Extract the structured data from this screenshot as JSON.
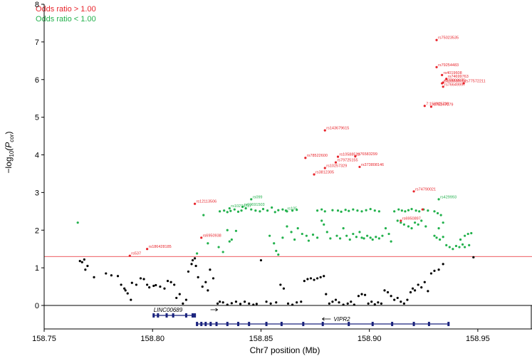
{
  "chart_data": {
    "type": "scatter",
    "xlabel": "Chr7 position (Mb)",
    "ylabel_main": "−log",
    "ylabel_sub": "10",
    "ylabel_paren": "(P",
    "ylabel_subsub": "cor",
    "ylabel_close": ")",
    "xlim": [
      158.75,
      158.975
    ],
    "ylim": [
      -0.6,
      8
    ],
    "x_ticks": [
      158.75,
      158.8,
      158.85,
      158.9,
      158.95
    ],
    "x_tick_labels": [
      "158.75",
      "158.80",
      "158.85",
      "158.90",
      "158.95"
    ],
    "y_ticks": [
      0,
      1,
      2,
      3,
      4,
      5,
      6,
      7,
      8
    ],
    "y_tick_labels": [
      "0",
      "1",
      "2",
      "3",
      "4",
      "5",
      "6",
      "7",
      "8"
    ],
    "threshold": 1.3,
    "colors": {
      "or_gt1": "#e8242b",
      "or_lt1": "#22b14c",
      "ns": "#000000",
      "threshold": "#e8242b",
      "gene": "#1a237e"
    },
    "legend": [
      {
        "label": "Odds ratio > 1.00",
        "color": "#e8242b"
      },
      {
        "label": "Odds ratio < 1.00",
        "color": "#22b14c"
      }
    ],
    "genes": [
      {
        "name": "LINC00689",
        "start": 158.8,
        "end": 158.82,
        "direction": "right",
        "exons": [
          158.8005,
          158.8025,
          158.8065,
          158.8095,
          158.8155,
          158.8185,
          158.8195
        ]
      },
      {
        "name": "VIPR2",
        "start": 158.82,
        "end": 158.937,
        "direction": "left",
        "exons": [
          158.8205,
          158.8225,
          158.8245,
          158.8268,
          158.8295,
          158.8345,
          158.8395,
          158.8445,
          158.8525,
          158.8595,
          158.8695,
          158.8785,
          158.8905,
          158.9015,
          158.9105,
          158.9205,
          158.9275,
          158.9365
        ]
      }
    ],
    "labeled_red": [
      {
        "name": "rs75023535",
        "x": 158.931,
        "y": 7.05
      },
      {
        "name": "rs79254483",
        "x": 158.931,
        "y": 6.33
      },
      {
        "name": "rs4019608",
        "x": 158.9335,
        "y": 6.12
      },
      {
        "name": "rs74699763",
        "x": 158.9355,
        "y": 6.02
      },
      {
        "name": "rs188030062",
        "x": 158.9335,
        "y": 5.9
      },
      {
        "name": "rs77003675",
        "x": 158.934,
        "y": 5.92
      },
      {
        "name": "rs77572211",
        "x": 158.9435,
        "y": 5.9
      },
      {
        "name": "rs76649997",
        "x": 158.934,
        "y": 5.81
      },
      {
        "name": "7:158925739",
        "x": 158.9255,
        "y": 5.3
      },
      {
        "name": "rs75247079",
        "x": 158.9285,
        "y": 5.28
      },
      {
        "name": "rs143679615",
        "x": 158.8795,
        "y": 4.65
      },
      {
        "name": "rs78522600",
        "x": 158.8705,
        "y": 3.92
      },
      {
        "name": "rs10588523",
        "x": 158.8855,
        "y": 3.95
      },
      {
        "name": "rs76583299",
        "x": 158.8935,
        "y": 3.96
      },
      {
        "name": "rs79725155",
        "x": 158.8845,
        "y": 3.8
      },
      {
        "name": "rs10257329",
        "x": 158.8795,
        "y": 3.65
      },
      {
        "name": "rs373808146",
        "x": 158.8955,
        "y": 3.68
      },
      {
        "name": "rs3812305",
        "x": 158.8745,
        "y": 3.48
      },
      {
        "name": "rs74790021",
        "x": 158.9205,
        "y": 3.03
      },
      {
        "name": "rs6950897",
        "x": 158.9145,
        "y": 2.25
      },
      {
        "name": "rs12113506",
        "x": 158.8195,
        "y": 2.7
      },
      {
        "name": "rs6950938",
        "x": 158.8225,
        "y": 1.8
      },
      {
        "name": "rs186428185",
        "x": 158.7975,
        "y": 1.5
      },
      {
        "name": "rs537",
        "x": 158.7895,
        "y": 1.32
      }
    ],
    "labeled_green": [
      {
        "name": "rs429993",
        "x": 158.932,
        "y": 2.82
      },
      {
        "name": "rs099",
        "x": 158.8455,
        "y": 2.82
      },
      {
        "name": "rs10274787",
        "x": 158.8355,
        "y": 2.58
      },
      {
        "name": "rs60691503",
        "x": 158.8415,
        "y": 2.62
      },
      {
        "name": "rs105",
        "x": 158.8615,
        "y": 2.52
      }
    ],
    "red_points_extra": [
      [
        158.9245,
        2.55
      ]
    ],
    "green_points": [
      [
        158.7655,
        2.2
      ],
      [
        158.8235,
        2.4
      ],
      [
        158.8205,
        1.38
      ],
      [
        158.8255,
        1.65
      ],
      [
        158.8305,
        1.55
      ],
      [
        158.8325,
        1.42
      ],
      [
        158.8355,
        1.7
      ],
      [
        158.8385,
        1.98
      ],
      [
        158.8365,
        1.75
      ],
      [
        158.8345,
        2.0
      ],
      [
        158.831,
        2.5
      ],
      [
        158.833,
        2.52
      ],
      [
        158.8345,
        2.48
      ],
      [
        158.836,
        2.51
      ],
      [
        158.8378,
        2.55
      ],
      [
        158.8395,
        2.49
      ],
      [
        158.841,
        2.52
      ],
      [
        158.843,
        2.58
      ],
      [
        158.8455,
        2.55
      ],
      [
        158.8475,
        2.52
      ],
      [
        158.8495,
        2.5
      ],
      [
        158.851,
        2.56
      ],
      [
        158.853,
        2.52
      ],
      [
        158.855,
        2.6
      ],
      [
        158.8565,
        2.48
      ],
      [
        158.858,
        2.53
      ],
      [
        158.86,
        2.55
      ],
      [
        158.862,
        2.5
      ],
      [
        158.8645,
        2.52
      ],
      [
        158.8665,
        2.54
      ],
      [
        158.854,
        1.85
      ],
      [
        158.856,
        1.65
      ],
      [
        158.857,
        1.45
      ],
      [
        158.858,
        1.35
      ],
      [
        158.86,
        1.8
      ],
      [
        158.862,
        2.1
      ],
      [
        158.864,
        1.95
      ],
      [
        158.8655,
        1.75
      ],
      [
        158.867,
        2.05
      ],
      [
        158.869,
        1.9
      ],
      [
        158.871,
        1.85
      ],
      [
        158.872,
        1.72
      ],
      [
        158.874,
        1.88
      ],
      [
        158.876,
        1.8
      ],
      [
        158.878,
        2.25
      ],
      [
        158.879,
        2.15
      ],
      [
        158.8805,
        1.95
      ],
      [
        158.882,
        1.78
      ],
      [
        158.876,
        2.52
      ],
      [
        158.878,
        2.55
      ],
      [
        158.8795,
        2.5
      ],
      [
        158.883,
        2.53
      ],
      [
        158.8855,
        2.52
      ],
      [
        158.887,
        2.49
      ],
      [
        158.889,
        2.54
      ],
      [
        158.8905,
        2.51
      ],
      [
        158.8925,
        2.55
      ],
      [
        158.8945,
        2.52
      ],
      [
        158.8965,
        2.5
      ],
      [
        158.8985,
        2.53
      ],
      [
        158.9005,
        2.56
      ],
      [
        158.9025,
        2.52
      ],
      [
        158.9045,
        2.5
      ],
      [
        158.885,
        1.85
      ],
      [
        158.8865,
        1.78
      ],
      [
        158.888,
        2.05
      ],
      [
        158.8895,
        1.85
      ],
      [
        158.891,
        1.75
      ],
      [
        158.8925,
        1.9
      ],
      [
        158.894,
        1.82
      ],
      [
        158.8955,
        1.95
      ],
      [
        158.8965,
        1.8
      ],
      [
        158.8975,
        1.78
      ],
      [
        158.899,
        1.85
      ],
      [
        158.9005,
        1.8
      ],
      [
        158.9015,
        1.75
      ],
      [
        158.903,
        1.82
      ],
      [
        158.9045,
        1.78
      ],
      [
        158.906,
        1.85
      ],
      [
        158.9075,
        2.05
      ],
      [
        158.909,
        1.9
      ],
      [
        158.91,
        1.7
      ],
      [
        158.9115,
        2.5
      ],
      [
        158.9135,
        2.55
      ],
      [
        158.915,
        2.52
      ],
      [
        158.9165,
        2.5
      ],
      [
        158.918,
        2.53
      ],
      [
        158.9195,
        2.56
      ],
      [
        158.9215,
        2.52
      ],
      [
        158.923,
        2.5
      ],
      [
        158.925,
        2.55
      ],
      [
        158.927,
        2.52
      ],
      [
        158.913,
        2.25
      ],
      [
        158.9145,
        2.2
      ],
      [
        158.916,
        2.15
      ],
      [
        158.918,
        2.1
      ],
      [
        158.9195,
        2.05
      ],
      [
        158.921,
        2.2
      ],
      [
        158.9225,
        2.15
      ],
      [
        158.924,
        2.25
      ],
      [
        158.926,
        2.1
      ],
      [
        158.93,
        2.5
      ],
      [
        158.9315,
        2.45
      ],
      [
        158.933,
        2.4
      ],
      [
        158.934,
        2.2
      ],
      [
        158.932,
        2.05
      ],
      [
        158.93,
        1.85
      ],
      [
        158.931,
        1.8
      ],
      [
        158.9325,
        1.75
      ],
      [
        158.934,
        1.82
      ],
      [
        158.9355,
        1.6
      ],
      [
        158.937,
        1.55
      ],
      [
        158.9385,
        1.5
      ],
      [
        158.94,
        1.58
      ],
      [
        158.9415,
        1.55
      ],
      [
        158.943,
        1.62
      ],
      [
        158.942,
        1.75
      ],
      [
        158.944,
        1.85
      ],
      [
        158.9455,
        1.9
      ],
      [
        158.947,
        1.92
      ],
      [
        158.946,
        1.6
      ],
      [
        158.944,
        1.55
      ]
    ],
    "black_points": [
      [
        158.7665,
        1.18
      ],
      [
        158.7685,
        1.22
      ],
      [
        158.7675,
        1.15
      ],
      [
        158.77,
        1.05
      ],
      [
        158.769,
        0.95
      ],
      [
        158.773,
        0.75
      ],
      [
        158.7785,
        0.85
      ],
      [
        158.781,
        0.8
      ],
      [
        158.784,
        0.78
      ],
      [
        158.7855,
        0.55
      ],
      [
        158.787,
        0.45
      ],
      [
        158.7875,
        0.4
      ],
      [
        158.7885,
        0.32
      ],
      [
        158.79,
        0.15
      ],
      [
        158.7905,
        0.6
      ],
      [
        158.7925,
        0.55
      ],
      [
        158.7945,
        0.72
      ],
      [
        158.796,
        0.7
      ],
      [
        158.7975,
        0.55
      ],
      [
        158.7985,
        0.48
      ],
      [
        158.8005,
        0.52
      ],
      [
        158.8015,
        0.54
      ],
      [
        158.8035,
        0.5
      ],
      [
        158.8055,
        0.45
      ],
      [
        158.807,
        0.65
      ],
      [
        158.8085,
        0.62
      ],
      [
        158.81,
        0.55
      ],
      [
        158.811,
        0.2
      ],
      [
        158.8125,
        0.3
      ],
      [
        158.814,
        0.05
      ],
      [
        158.8155,
        0.15
      ],
      [
        158.8165,
        0.9
      ],
      [
        158.818,
        1.1
      ],
      [
        158.8185,
        1.2
      ],
      [
        158.8195,
        1.25
      ],
      [
        158.82,
        1.05
      ],
      [
        158.821,
        0.75
      ],
      [
        158.823,
        0.5
      ],
      [
        158.8245,
        0.62
      ],
      [
        158.8255,
        0.4
      ],
      [
        158.8265,
        0.95
      ],
      [
        158.828,
        0.72
      ],
      [
        158.83,
        0.05
      ],
      [
        158.831,
        0.1
      ],
      [
        158.8325,
        0.08
      ],
      [
        158.8345,
        0.02
      ],
      [
        158.8365,
        0.06
      ],
      [
        158.8385,
        0.1
      ],
      [
        158.8405,
        0.04
      ],
      [
        158.8425,
        0.1
      ],
      [
        158.8445,
        0.05
      ],
      [
        158.8465,
        0.02
      ],
      [
        158.848,
        0.04
      ],
      [
        158.85,
        1.2
      ],
      [
        158.8525,
        0.1
      ],
      [
        158.8545,
        0.05
      ],
      [
        158.857,
        0.08
      ],
      [
        158.859,
        0.55
      ],
      [
        158.8605,
        0.45
      ],
      [
        158.8625,
        0.05
      ],
      [
        158.8645,
        0.02
      ],
      [
        158.8665,
        0.08
      ],
      [
        158.8685,
        0.1
      ],
      [
        158.87,
        0.65
      ],
      [
        158.8715,
        0.7
      ],
      [
        158.873,
        0.72
      ],
      [
        158.8745,
        0.68
      ],
      [
        158.876,
        0.72
      ],
      [
        158.8775,
        0.75
      ],
      [
        158.879,
        0.78
      ],
      [
        158.88,
        0.3
      ],
      [
        158.8815,
        0.05
      ],
      [
        158.883,
        0.1
      ],
      [
        158.8845,
        0.15
      ],
      [
        158.886,
        0.08
      ],
      [
        158.888,
        0.02
      ],
      [
        158.89,
        0.05
      ],
      [
        158.8915,
        0.1
      ],
      [
        158.893,
        0.02
      ],
      [
        158.895,
        0.25
      ],
      [
        158.8965,
        0.3
      ],
      [
        158.898,
        0.28
      ],
      [
        158.8995,
        0.05
      ],
      [
        158.901,
        0.1
      ],
      [
        158.9025,
        0.03
      ],
      [
        158.904,
        0.08
      ],
      [
        158.9055,
        0.05
      ],
      [
        158.907,
        0.4
      ],
      [
        158.9085,
        0.35
      ],
      [
        158.91,
        0.25
      ],
      [
        158.9115,
        0.15
      ],
      [
        158.913,
        0.2
      ],
      [
        158.9145,
        0.1
      ],
      [
        158.916,
        0.05
      ],
      [
        158.9175,
        0.15
      ],
      [
        158.919,
        0.35
      ],
      [
        158.92,
        0.45
      ],
      [
        158.921,
        0.4
      ],
      [
        158.9225,
        0.55
      ],
      [
        158.924,
        0.48
      ],
      [
        158.9255,
        0.62
      ],
      [
        158.927,
        0.38
      ],
      [
        158.9285,
        0.85
      ],
      [
        158.93,
        0.92
      ],
      [
        158.932,
        0.95
      ],
      [
        158.934,
        1.1
      ],
      [
        158.948,
        1.28
      ]
    ]
  }
}
